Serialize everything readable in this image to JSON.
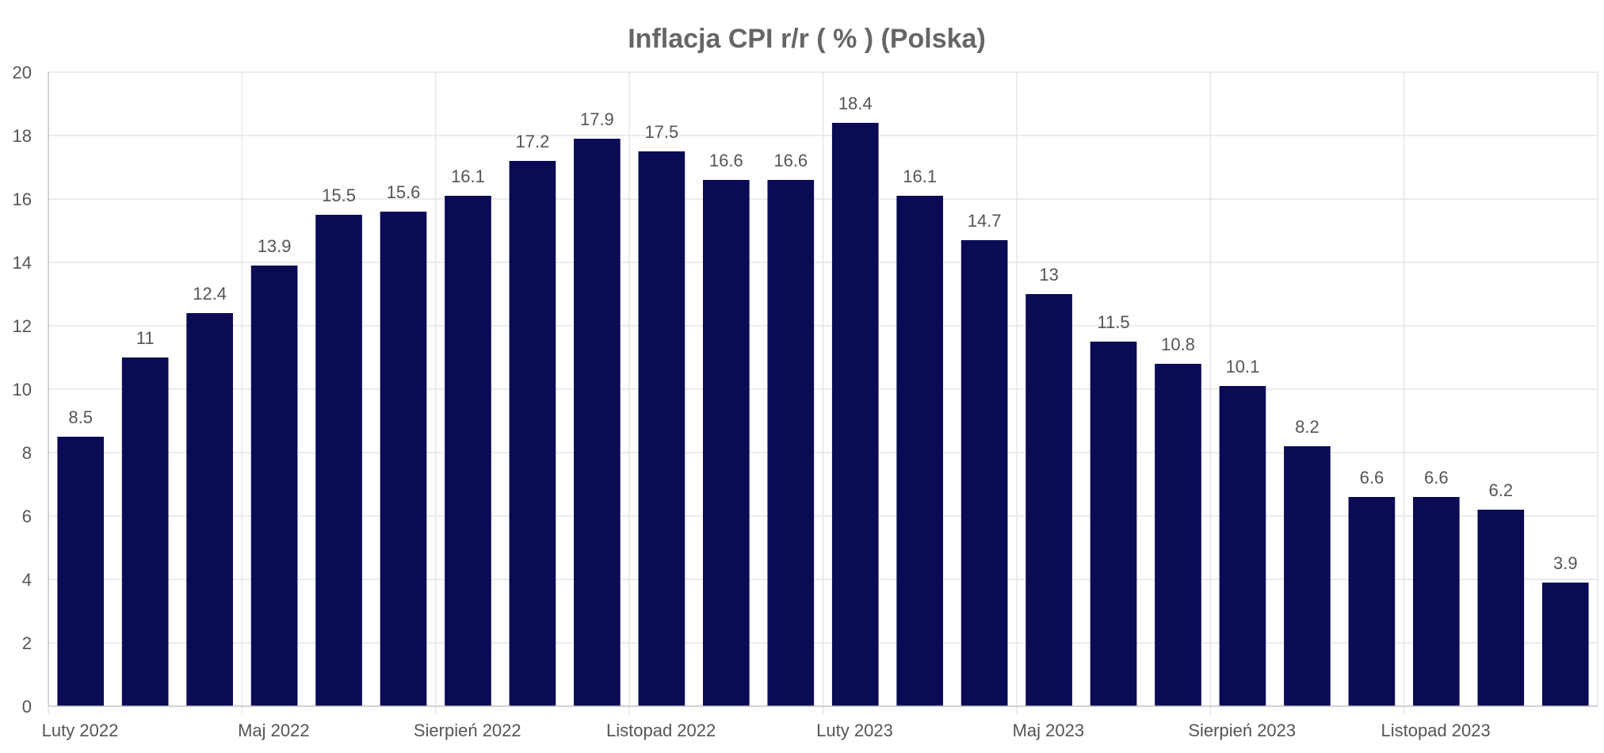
{
  "chart_data": {
    "type": "bar",
    "title": "Inflacja CPI r/r ( % ) (Polska)",
    "xlabel": "",
    "ylabel": "",
    "ylim": [
      0,
      20
    ],
    "yticks": [
      "0",
      "2",
      "4",
      "6",
      "8",
      "10",
      "12",
      "14",
      "16",
      "18",
      "20"
    ],
    "x_tick_labels": [
      {
        "index": 0,
        "label": "Luty 2022"
      },
      {
        "index": 3,
        "label": "Maj 2022"
      },
      {
        "index": 6,
        "label": "Sierpień 2022"
      },
      {
        "index": 9,
        "label": "Listopad 2022"
      },
      {
        "index": 12,
        "label": "Luty 2023"
      },
      {
        "index": 15,
        "label": "Maj 2023"
      },
      {
        "index": 18,
        "label": "Sierpień 2023"
      },
      {
        "index": 21,
        "label": "Listopad 2023"
      }
    ],
    "categories": [
      "2022-02",
      "2022-03",
      "2022-04",
      "2022-05",
      "2022-06",
      "2022-07",
      "2022-08",
      "2022-09",
      "2022-10",
      "2022-11",
      "2022-12",
      "2023-01",
      "2023-02",
      "2023-03",
      "2023-04",
      "2023-05",
      "2023-06",
      "2023-07",
      "2023-08",
      "2023-09",
      "2023-10",
      "2023-11",
      "2023-12",
      "2024-01"
    ],
    "values": [
      8.5,
      11,
      12.4,
      13.9,
      15.5,
      15.6,
      16.1,
      17.2,
      17.9,
      17.5,
      16.6,
      16.6,
      18.4,
      16.1,
      14.7,
      13,
      11.5,
      10.8,
      10.1,
      8.2,
      6.6,
      6.6,
      6.2,
      3.9
    ],
    "data_labels": [
      "8.5",
      "11",
      "12.4",
      "13.9",
      "15.5",
      "15.6",
      "16.1",
      "17.2",
      "17.9",
      "17.5",
      "16.6",
      "16.6",
      "18.4",
      "16.1",
      "14.7",
      "13",
      "11.5",
      "10.8",
      "10.1",
      "8.2",
      "6.6",
      "6.6",
      "6.2",
      "3.9"
    ],
    "grid": true,
    "legend": "none",
    "colors": {
      "bar": "#0a0a55",
      "text": "#555555",
      "title": "#666666",
      "grid": "#e6e6e6"
    }
  }
}
